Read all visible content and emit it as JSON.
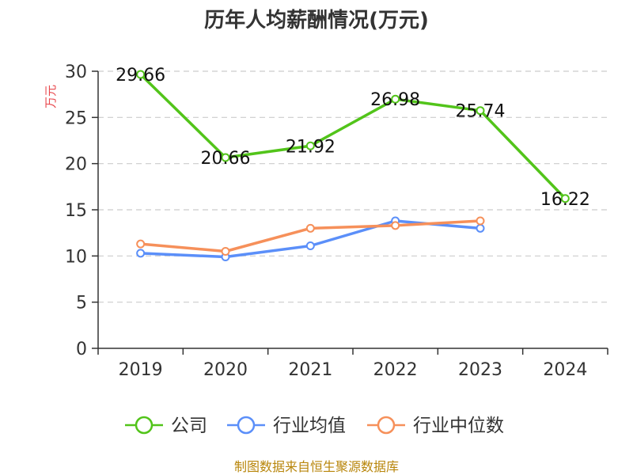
{
  "chart_data": {
    "type": "line",
    "title": "历年人均薪酬情况(万元)",
    "ylabel": "万元",
    "xlabel": "",
    "categories": [
      "2019",
      "2020",
      "2021",
      "2022",
      "2023",
      "2024"
    ],
    "ylim": [
      0,
      30
    ],
    "yticks": [
      0,
      5,
      10,
      15,
      20,
      25,
      30
    ],
    "grid": true,
    "legend_position": "bottom",
    "series": [
      {
        "name": "公司",
        "color": "#52c41a",
        "values": [
          29.66,
          20.66,
          21.92,
          26.98,
          25.74,
          16.22
        ],
        "data_labels": true
      },
      {
        "name": "行业均值",
        "color": "#5b8ff9",
        "values": [
          10.3,
          9.9,
          11.1,
          13.8,
          13.0,
          null
        ],
        "data_labels": false
      },
      {
        "name": "行业中位数",
        "color": "#f6905a",
        "values": [
          11.3,
          10.5,
          13.0,
          13.3,
          13.8,
          null
        ],
        "data_labels": false
      }
    ]
  },
  "source": "制图数据来自恒生聚源数据库",
  "colors": {
    "ylabel": "#e8474c",
    "source": "#b8860b",
    "axis": "#333333",
    "grid": "#cccccc"
  }
}
